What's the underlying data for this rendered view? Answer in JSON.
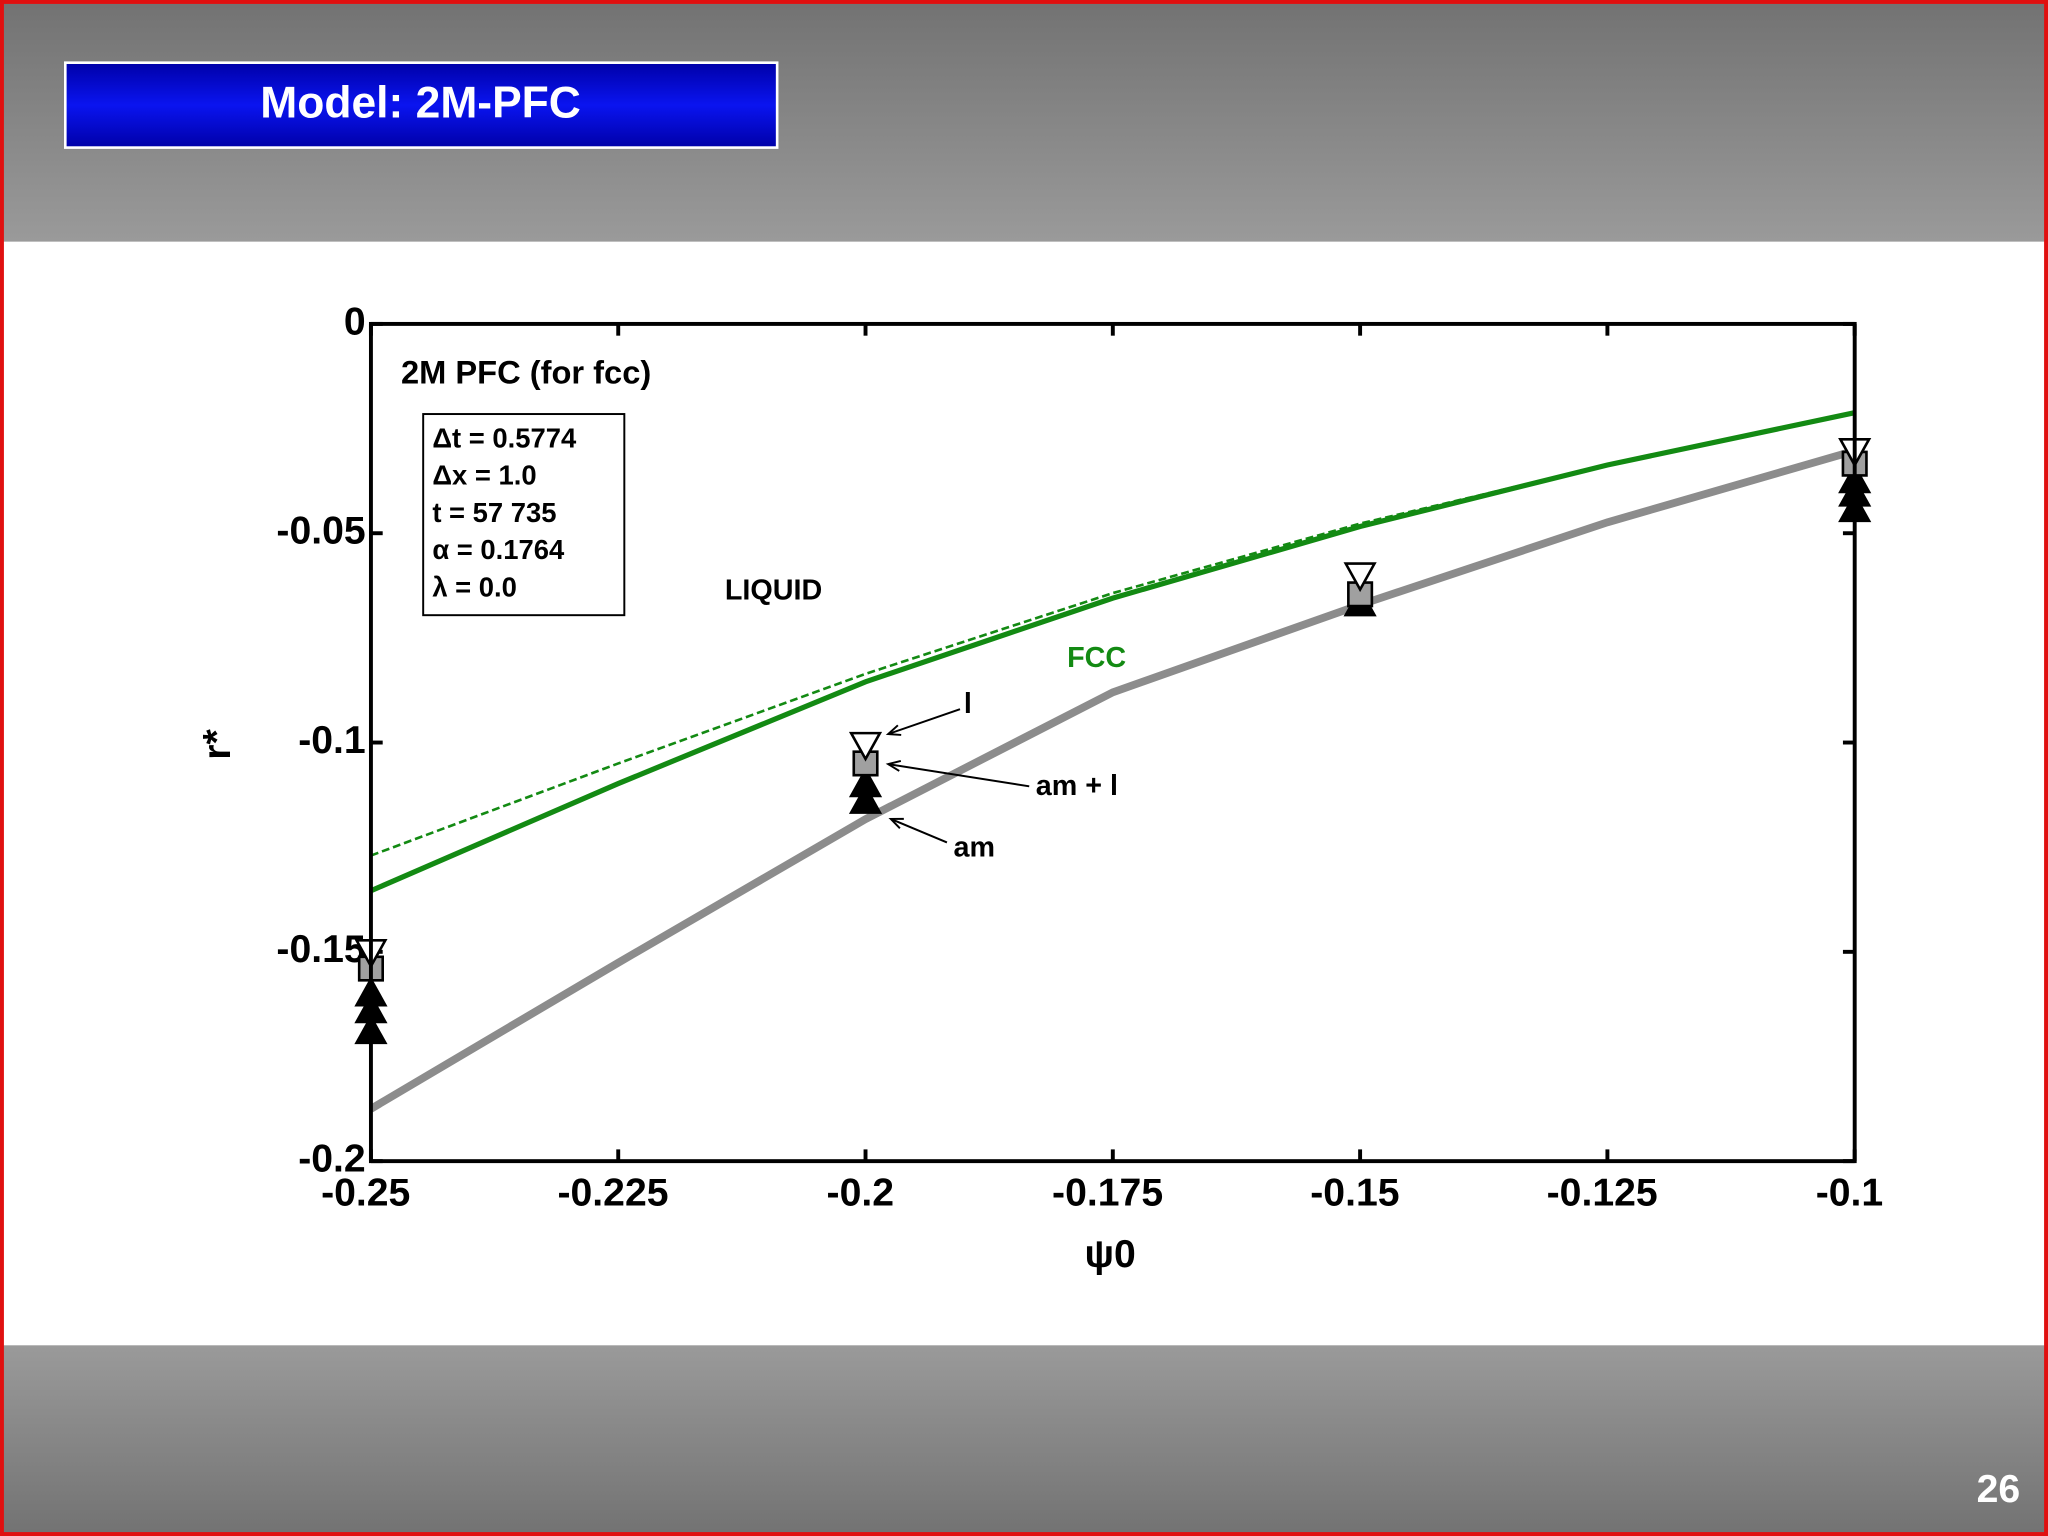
{
  "slide": {
    "title": "Model: 2M-PFC",
    "page_number": "26"
  },
  "chart_data": {
    "type": "line",
    "title": "2M PFC (for fcc)",
    "x_label": "ψ0",
    "y_label": "r*",
    "info_box": [
      "Δt = 0.5774",
      "Δx = 1.0",
      "t = 57 735",
      "α = 0.1764",
      "λ = 0.0"
    ],
    "annotations": [
      "LIQUID",
      "FCC",
      "l",
      "am + l",
      "am"
    ],
    "xlim": [
      -0.25,
      -0.1
    ],
    "xticks": [
      -0.25,
      -0.225,
      -0.2,
      -0.175,
      -0.15,
      -0.125,
      -0.1
    ],
    "ylim": [
      -0.2,
      0
    ],
    "yticks": [
      0,
      -0.05,
      -0.1,
      -0.15,
      -0.2
    ],
    "series": [
      {
        "type": "line",
        "style": "solid",
        "color": "#8c8c8c",
        "width": 6,
        "x": [
          -0.25,
          -0.225,
          -0.2,
          -0.175,
          -0.15,
          -0.125,
          -0.1
        ],
        "values": [
          -0.1875,
          -0.1526,
          -0.1183,
          -0.088,
          -0.0671,
          -0.0474,
          -0.0303
        ]
      },
      {
        "type": "line",
        "style": "dashed",
        "color": "#138a13",
        "width": 2,
        "x": [
          -0.25,
          -0.225,
          -0.2,
          -0.175,
          -0.15,
          -0.125,
          -0.1
        ],
        "values": [
          -0.127,
          -0.105,
          -0.0836,
          -0.0643,
          -0.0477,
          -0.0337,
          -0.0212
        ]
      },
      {
        "type": "line",
        "style": "solid",
        "color": "#138a13",
        "width": 4,
        "x": [
          -0.25,
          -0.225,
          -0.2,
          -0.175,
          -0.15,
          -0.125,
          -0.1
        ],
        "values": [
          -0.1354,
          -0.1098,
          -0.0855,
          -0.0655,
          -0.0484,
          -0.0337,
          -0.0212
        ]
      },
      {
        "type": "scatter",
        "marker": "triangle-up",
        "color": "#000000",
        "x": [
          -0.25,
          -0.25,
          -0.25,
          -0.2,
          -0.2,
          -0.15,
          -0.1,
          -0.1,
          -0.1
        ],
        "values": [
          -0.16,
          -0.164,
          -0.169,
          -0.11,
          -0.114,
          -0.0668,
          -0.0374,
          -0.0406,
          -0.0443
        ]
      },
      {
        "type": "scatter",
        "marker": "square",
        "color": "#a0a0a0",
        "x": [
          -0.25,
          -0.2,
          -0.15,
          -0.1
        ],
        "values": [
          -0.154,
          -0.105,
          -0.0646,
          -0.0334
        ]
      },
      {
        "type": "scatter",
        "marker": "triangle-down",
        "color": "#ffffff",
        "x": [
          -0.25,
          -0.2,
          -0.15,
          -0.1
        ],
        "values": [
          -0.15,
          -0.1005,
          -0.06,
          -0.0303
        ]
      }
    ]
  }
}
